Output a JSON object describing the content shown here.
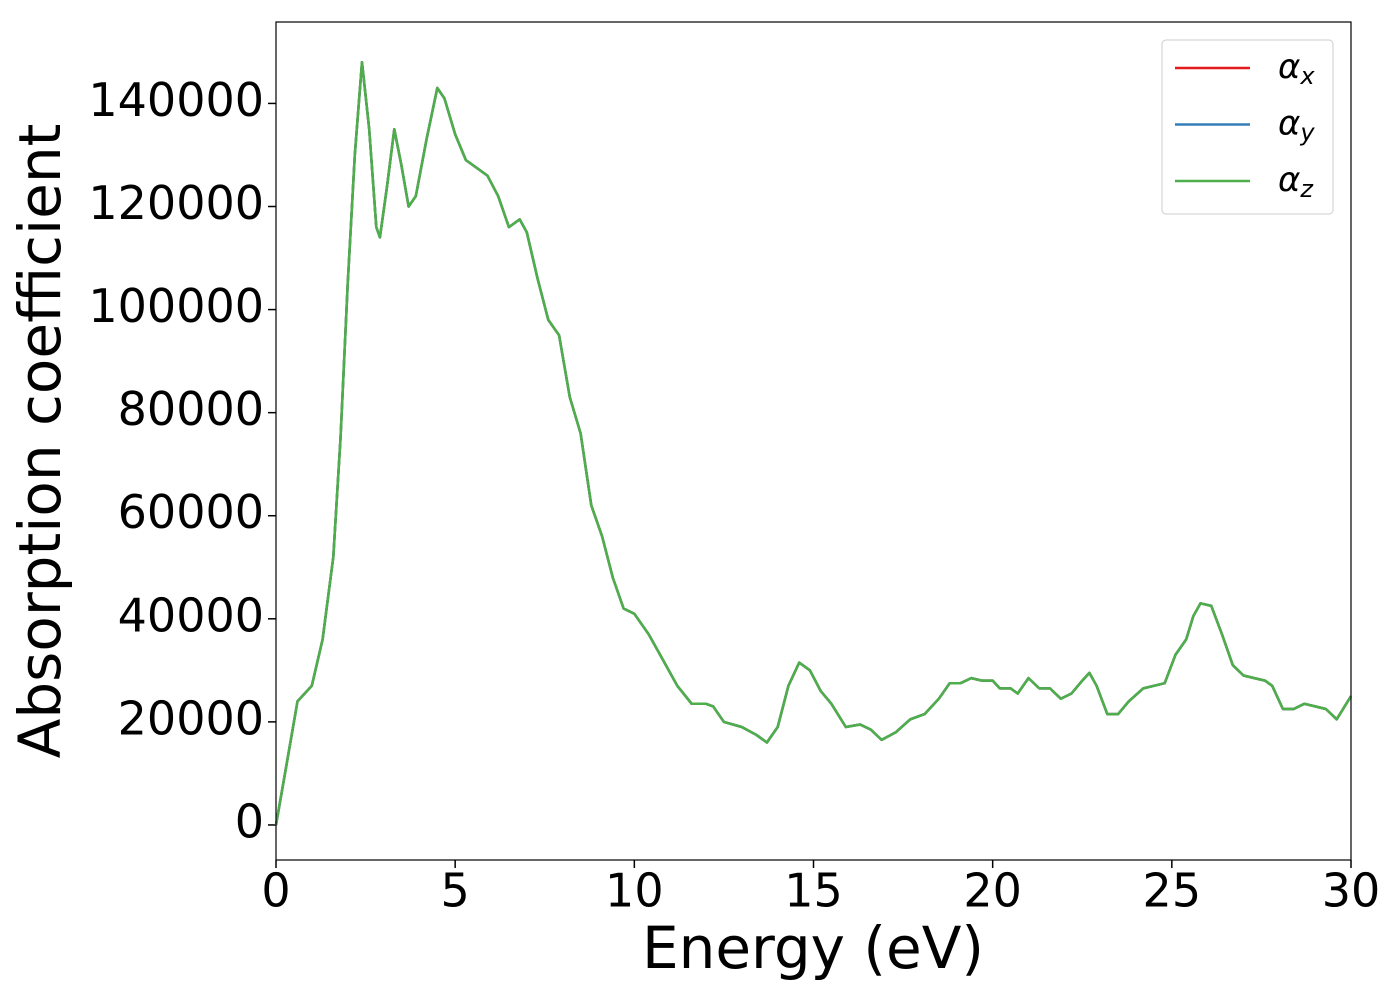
{
  "chart_data": {
    "type": "line",
    "xlabel": "Energy (eV)",
    "ylabel": "Absorption coefficient",
    "x": [
      0,
      0.3,
      0.6,
      0.8,
      1.0,
      1.3,
      1.6,
      1.8,
      2.0,
      2.2,
      2.4,
      2.6,
      2.8,
      2.9,
      3.1,
      3.3,
      3.5,
      3.7,
      3.9,
      4.2,
      4.5,
      4.7,
      5.0,
      5.3,
      5.6,
      5.9,
      6.2,
      6.5,
      6.8,
      7.0,
      7.3,
      7.6,
      7.9,
      8.2,
      8.5,
      8.8,
      9.1,
      9.4,
      9.7,
      10.0,
      10.4,
      10.8,
      11.2,
      11.6,
      12.0,
      12.2,
      12.5,
      13.0,
      13.4,
      13.7,
      14.0,
      14.3,
      14.6,
      14.9,
      15.2,
      15.5,
      15.9,
      16.3,
      16.6,
      16.9,
      17.3,
      17.7,
      18.1,
      18.5,
      18.8,
      19.1,
      19.4,
      19.7,
      20.0,
      20.2,
      20.5,
      20.7,
      21.0,
      21.3,
      21.6,
      21.9,
      22.2,
      22.5,
      22.7,
      22.9,
      23.2,
      23.5,
      23.8,
      24.2,
      24.5,
      24.8,
      25.1,
      25.4,
      25.6,
      25.8,
      26.1,
      26.4,
      26.7,
      27.0,
      27.3,
      27.6,
      27.8,
      28.1,
      28.4,
      28.7,
      29.0,
      29.3,
      29.6,
      30.0
    ],
    "series": [
      {
        "name": "αx",
        "color": "#e41a1c",
        "values": [
          0,
          12000,
          24000,
          25500,
          27000,
          36000,
          52000,
          75000,
          105000,
          130000,
          148000,
          135000,
          116000,
          114000,
          124000,
          135000,
          128000,
          120000,
          122000,
          133000,
          143000,
          141000,
          134000,
          129000,
          127500,
          126000,
          122000,
          116000,
          117500,
          115000,
          106000,
          98000,
          95000,
          83000,
          76000,
          62000,
          56000,
          48000,
          42000,
          41000,
          37000,
          32000,
          27000,
          23500,
          23500,
          23000,
          20000,
          19000,
          17500,
          16000,
          19000,
          27000,
          31500,
          30000,
          26000,
          23500,
          19000,
          19500,
          18500,
          16500,
          18000,
          20500,
          21500,
          24500,
          27500,
          27500,
          28500,
          28000,
          28000,
          26500,
          26500,
          25500,
          28500,
          26500,
          26500,
          24500,
          25500,
          28000,
          29500,
          27000,
          21500,
          21500,
          24000,
          26500,
          27000,
          27500,
          33000,
          36000,
          40500,
          43000,
          42500,
          37000,
          31000,
          29000,
          28500,
          28000,
          27000,
          22500,
          22500,
          23500,
          23000,
          22500,
          20500,
          25000
        ]
      },
      {
        "name": "αy",
        "color": "#377eb8",
        "values": [
          0,
          12000,
          24000,
          25500,
          27000,
          36000,
          52000,
          75000,
          105000,
          130000,
          148000,
          135000,
          116000,
          114000,
          124000,
          135000,
          128000,
          120000,
          122000,
          133000,
          143000,
          141000,
          134000,
          129000,
          127500,
          126000,
          122000,
          116000,
          117500,
          115000,
          106000,
          98000,
          95000,
          83000,
          76000,
          62000,
          56000,
          48000,
          42000,
          41000,
          37000,
          32000,
          27000,
          23500,
          23500,
          23000,
          20000,
          19000,
          17500,
          16000,
          19000,
          27000,
          31500,
          30000,
          26000,
          23500,
          19000,
          19500,
          18500,
          16500,
          18000,
          20500,
          21500,
          24500,
          27500,
          27500,
          28500,
          28000,
          28000,
          26500,
          26500,
          25500,
          28500,
          26500,
          26500,
          24500,
          25500,
          28000,
          29500,
          27000,
          21500,
          21500,
          24000,
          26500,
          27000,
          27500,
          33000,
          36000,
          40500,
          43000,
          42500,
          37000,
          31000,
          29000,
          28500,
          28000,
          27000,
          22500,
          22500,
          23500,
          23000,
          22500,
          20500,
          25000
        ]
      },
      {
        "name": "αz",
        "color": "#4daf4a",
        "values": [
          0,
          12000,
          24000,
          25500,
          27000,
          36000,
          52000,
          75000,
          105000,
          130000,
          148000,
          135000,
          116000,
          114000,
          124000,
          135000,
          128000,
          120000,
          122000,
          133000,
          143000,
          141000,
          134000,
          129000,
          127500,
          126000,
          122000,
          116000,
          117500,
          115000,
          106000,
          98000,
          95000,
          83000,
          76000,
          62000,
          56000,
          48000,
          42000,
          41000,
          37000,
          32000,
          27000,
          23500,
          23500,
          23000,
          20000,
          19000,
          17500,
          16000,
          19000,
          27000,
          31500,
          30000,
          26000,
          23500,
          19000,
          19500,
          18500,
          16500,
          18000,
          20500,
          21500,
          24500,
          27500,
          27500,
          28500,
          28000,
          28000,
          26500,
          26500,
          25500,
          28500,
          26500,
          26500,
          24500,
          25500,
          28000,
          29500,
          27000,
          21500,
          21500,
          24000,
          26500,
          27000,
          27500,
          33000,
          36000,
          40500,
          43000,
          42500,
          37000,
          31000,
          29000,
          28500,
          28000,
          27000,
          22500,
          22500,
          23500,
          23000,
          22500,
          20500,
          25000
        ]
      }
    ],
    "xlim": [
      0,
      30
    ],
    "xticks": [
      0,
      5,
      10,
      15,
      20,
      25,
      30
    ],
    "ylim": [
      -6800,
      155800
    ],
    "yticks": [
      0,
      20000,
      40000,
      60000,
      80000,
      100000,
      120000,
      140000
    ],
    "legend": "upper right",
    "grid": false
  }
}
